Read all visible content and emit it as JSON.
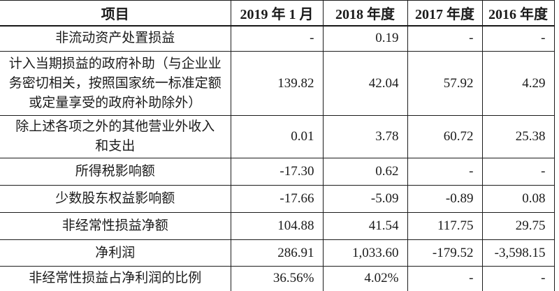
{
  "table": {
    "columns": [
      {
        "label": "项目"
      },
      {
        "label": "2019 年 1 月"
      },
      {
        "label": "2018 年度"
      },
      {
        "label": "2017 年度"
      },
      {
        "label": "2016 年度"
      }
    ],
    "rows": [
      {
        "item": "非流动资产处置损益",
        "values": [
          "-",
          "0.19",
          "-",
          "-"
        ]
      },
      {
        "item": "计入当期损益的政府补助（与企业业\n务密切相关，按照国家统一标准定额\n或定量享受的政府补助除外）",
        "values": [
          "139.82",
          "42.04",
          "57.92",
          "4.29"
        ]
      },
      {
        "item": "除上述各项之外的其他营业外收入\n和支出",
        "values": [
          "0.01",
          "3.78",
          "60.72",
          "25.38"
        ]
      },
      {
        "item": "所得税影响额",
        "values": [
          "-17.30",
          "0.62",
          "-",
          "-"
        ]
      },
      {
        "item": "少数股东权益影响额",
        "values": [
          "-17.66",
          "-5.09",
          "-0.89",
          "0.08"
        ]
      },
      {
        "item": "非经常性损益净额",
        "values": [
          "104.88",
          "41.54",
          "117.75",
          "29.75"
        ]
      },
      {
        "item": "净利润",
        "values": [
          "286.91",
          "1,033.60",
          "-179.52",
          "-3,598.15"
        ]
      },
      {
        "item": "非经常性损益占净利润的比例",
        "values": [
          "36.56%",
          "4.02%",
          "-",
          "-"
        ]
      }
    ]
  },
  "colors": {
    "border": "#1c1c1c",
    "text": "#1a1a1a",
    "background": "#ffffff"
  }
}
